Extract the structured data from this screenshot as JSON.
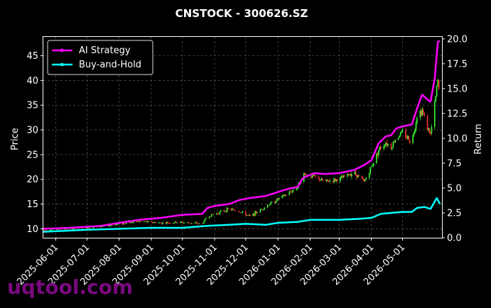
{
  "chart_data": {
    "type": "line",
    "title": "CNSTOCK - 300626.SZ",
    "ylabel": "Price",
    "y2label": "Return",
    "xlabel": "",
    "ylim": [
      8.2,
      48.8
    ],
    "y2lim": [
      0,
      20.2
    ],
    "yticks": [
      10,
      15,
      20,
      25,
      30,
      35,
      40,
      45
    ],
    "y2ticks": [
      0.0,
      2.5,
      5.0,
      7.5,
      10.0,
      12.5,
      15.0,
      17.5,
      20.0
    ],
    "xlim": [
      "2025-05-20",
      "2026-06-08"
    ],
    "xticks": [
      "2025-06-01",
      "2025-07-01",
      "2025-08-01",
      "2025-09-01",
      "2025-10-01",
      "2025-11-01",
      "2025-12-01",
      "2026-01-01",
      "2026-02-01",
      "2026-03-01",
      "2026-04-01",
      "2026-05-01"
    ],
    "grid": true,
    "legend_position": "top-left",
    "colors": {
      "ai_strategy": "#ff00ff",
      "buy_hold": "#00ffff",
      "up": "#33ff33",
      "down": "#ff3333",
      "background": "#000000"
    },
    "series": [
      {
        "name": "AI Strategy",
        "axis": "return",
        "points": [
          [
            "2025-05-20",
            0.9
          ],
          [
            "2025-06-15",
            1.0
          ],
          [
            "2025-07-15",
            1.2
          ],
          [
            "2025-08-01",
            1.5
          ],
          [
            "2025-08-20",
            1.8
          ],
          [
            "2025-09-10",
            2.0
          ],
          [
            "2025-10-01",
            2.3
          ],
          [
            "2025-10-20",
            2.4
          ],
          [
            "2025-10-25",
            3.0
          ],
          [
            "2025-11-01",
            3.2
          ],
          [
            "2025-11-15",
            3.4
          ],
          [
            "2025-11-25",
            3.8
          ],
          [
            "2025-12-05",
            4.0
          ],
          [
            "2025-12-20",
            4.2
          ],
          [
            "2026-01-01",
            4.6
          ],
          [
            "2026-01-10",
            4.9
          ],
          [
            "2026-01-20",
            5.1
          ],
          [
            "2026-01-25",
            6.0
          ],
          [
            "2026-02-05",
            6.5
          ],
          [
            "2026-02-15",
            6.4
          ],
          [
            "2026-03-01",
            6.5
          ],
          [
            "2026-03-15",
            6.8
          ],
          [
            "2026-03-25",
            7.3
          ],
          [
            "2026-04-01",
            7.8
          ],
          [
            "2026-04-08",
            9.5
          ],
          [
            "2026-04-15",
            10.2
          ],
          [
            "2026-04-20",
            10.3
          ],
          [
            "2026-04-25",
            11.0
          ],
          [
            "2026-05-01",
            11.2
          ],
          [
            "2026-05-10",
            11.4
          ],
          [
            "2026-05-15",
            13.0
          ],
          [
            "2026-05-20",
            14.4
          ],
          [
            "2026-05-25",
            13.9
          ],
          [
            "2026-05-28",
            13.7
          ],
          [
            "2026-06-01",
            16.0
          ],
          [
            "2026-06-04",
            19.7
          ],
          [
            "2026-06-06",
            19.8
          ]
        ]
      },
      {
        "name": "Buy-and-Hold",
        "axis": "return",
        "points": [
          [
            "2025-05-20",
            0.6
          ],
          [
            "2025-07-01",
            0.8
          ],
          [
            "2025-08-01",
            0.9
          ],
          [
            "2025-09-01",
            1.0
          ],
          [
            "2025-10-01",
            1.0
          ],
          [
            "2025-10-25",
            1.2
          ],
          [
            "2025-11-15",
            1.3
          ],
          [
            "2025-12-01",
            1.4
          ],
          [
            "2025-12-20",
            1.3
          ],
          [
            "2026-01-01",
            1.5
          ],
          [
            "2026-01-20",
            1.6
          ],
          [
            "2026-02-01",
            1.8
          ],
          [
            "2026-02-15",
            1.8
          ],
          [
            "2026-03-01",
            1.8
          ],
          [
            "2026-03-20",
            1.9
          ],
          [
            "2026-04-01",
            2.0
          ],
          [
            "2026-04-10",
            2.4
          ],
          [
            "2026-04-20",
            2.5
          ],
          [
            "2026-05-01",
            2.6
          ],
          [
            "2026-05-10",
            2.6
          ],
          [
            "2026-05-15",
            3.0
          ],
          [
            "2026-05-22",
            3.1
          ],
          [
            "2026-05-28",
            2.9
          ],
          [
            "2026-06-03",
            4.0
          ],
          [
            "2026-06-06",
            3.4
          ]
        ]
      },
      {
        "name": "Price",
        "axis": "price",
        "points": [
          [
            "2025-05-20",
            9.8
          ],
          [
            "2025-06-15",
            10.1
          ],
          [
            "2025-07-15",
            10.5
          ],
          [
            "2025-08-01",
            11.0
          ],
          [
            "2025-08-20",
            11.5
          ],
          [
            "2025-09-10",
            11.2
          ],
          [
            "2025-10-01",
            11.3
          ],
          [
            "2025-10-20",
            11.0
          ],
          [
            "2025-10-25",
            12.5
          ],
          [
            "2025-11-01",
            13.0
          ],
          [
            "2025-11-15",
            14.0
          ],
          [
            "2025-11-25",
            13.5
          ],
          [
            "2025-12-05",
            12.5
          ],
          [
            "2025-12-20",
            14.5
          ],
          [
            "2026-01-01",
            16.0
          ],
          [
            "2026-01-10",
            17.0
          ],
          [
            "2026-01-20",
            18.5
          ],
          [
            "2026-01-25",
            21.0
          ],
          [
            "2026-02-05",
            20.5
          ],
          [
            "2026-02-15",
            19.5
          ],
          [
            "2026-03-01",
            20.0
          ],
          [
            "2026-03-15",
            21.5
          ],
          [
            "2026-03-25",
            19.5
          ],
          [
            "2026-04-01",
            22.5
          ],
          [
            "2026-04-08",
            26.0
          ],
          [
            "2026-04-15",
            27.5
          ],
          [
            "2026-04-20",
            26.5
          ],
          [
            "2026-04-25",
            28.5
          ],
          [
            "2026-05-01",
            29.5
          ],
          [
            "2026-05-10",
            27.5
          ],
          [
            "2026-05-15",
            33.0
          ],
          [
            "2026-05-20",
            34.0
          ],
          [
            "2026-05-25",
            30.5
          ],
          [
            "2026-05-28",
            29.0
          ],
          [
            "2026-06-01",
            35.0
          ],
          [
            "2026-06-04",
            40.0
          ],
          [
            "2026-06-06",
            36.0
          ]
        ]
      }
    ]
  },
  "watermark": "uqtool.com"
}
